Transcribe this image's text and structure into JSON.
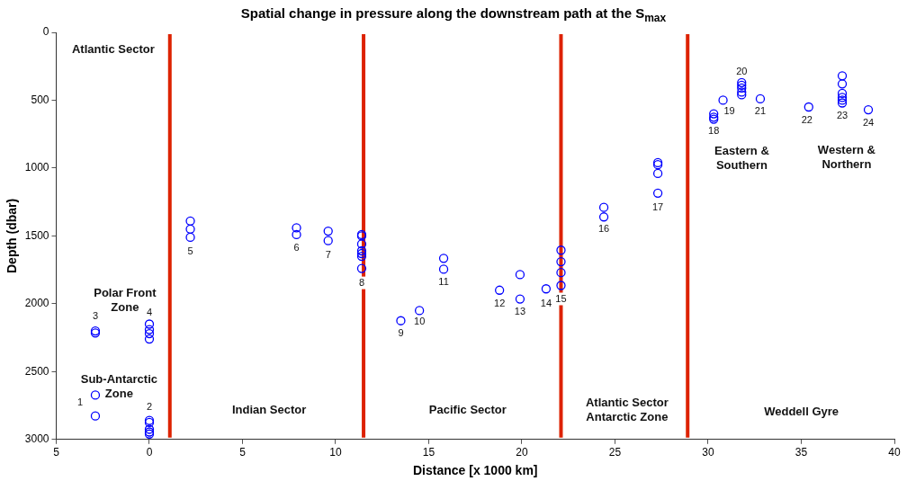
{
  "chart_data": {
    "type": "scatter",
    "title": "Spatial change in pressure along the downstream path at the S$_{max}$",
    "xlabel": "Distance [x 1000 km]",
    "ylabel": "Depth (dbar)",
    "xlim": [
      -5,
      40
    ],
    "xticks": [
      {
        "value": -5,
        "label": "5"
      },
      0,
      5,
      10,
      15,
      20,
      25,
      30,
      35,
      40
    ],
    "ylim": [
      3000,
      0
    ],
    "yticks": [
      0,
      500,
      1000,
      1500,
      2000,
      2500,
      3000
    ],
    "grid": false,
    "legend": false,
    "marker": "circle",
    "series": [
      {
        "color": "#0000ff",
        "x": [
          -2.9,
          -2.9,
          0,
          0,
          0,
          0,
          0,
          -2.9,
          -2.9,
          0,
          0,
          0,
          0,
          2.2,
          2.2,
          2.2,
          7.9,
          7.9,
          9.6,
          9.6,
          11.4,
          11.4,
          11.4,
          11.4,
          11.4,
          11.4,
          11.4,
          13.5,
          14.5,
          15.8,
          15.8,
          18.8,
          19.9,
          19.9,
          21.3,
          22.1,
          22.1,
          22.1,
          22.1,
          24.4,
          24.4,
          27.3,
          27.3,
          27.3,
          27.3,
          30.3,
          30.3,
          30.3,
          30.8,
          31.8,
          31.8,
          31.8,
          31.8,
          31.8,
          32.8,
          35.4,
          37.2,
          37.2,
          37.2,
          37.2,
          37.2,
          37.2,
          38.6
        ],
        "values": [
          2673,
          2827,
          2860,
          2875,
          2925,
          2945,
          2960,
          2200,
          2215,
          2150,
          2190,
          2220,
          2260,
          1390,
          1450,
          1510,
          1440,
          1490,
          1465,
          1535,
          1490,
          1500,
          1560,
          1610,
          1630,
          1650,
          1740,
          2125,
          2050,
          1665,
          1745,
          1900,
          1785,
          1965,
          1890,
          1605,
          1690,
          1770,
          1865,
          1290,
          1360,
          960,
          975,
          1040,
          1185,
          600,
          625,
          640,
          500,
          370,
          390,
          410,
          440,
          460,
          490,
          550,
          320,
          380,
          450,
          480,
          500,
          520,
          570
        ]
      }
    ],
    "ref_lines": [
      {
        "axis": "x",
        "value": 1.1,
        "color": "#dd2200"
      },
      {
        "axis": "x",
        "value": 11.5,
        "color": "#dd2200"
      },
      {
        "axis": "x",
        "value": 22.1,
        "color": "#dd2200"
      },
      {
        "axis": "x",
        "value": 28.9,
        "color": "#dd2200"
      }
    ],
    "annotations": [
      {
        "text": "1",
        "x": -2.9,
        "y": 2673
      },
      {
        "text": "2",
        "x": 0,
        "y": 2860
      },
      {
        "text": "3",
        "x": -2.9,
        "y": 2200
      },
      {
        "text": "4",
        "x": 0,
        "y": 2150
      },
      {
        "text": "5",
        "x": 2.2,
        "y": 1510
      },
      {
        "text": "6",
        "x": 7.9,
        "y": 1490
      },
      {
        "text": "7",
        "x": 9.6,
        "y": 1535
      },
      {
        "text": "8",
        "x": 11.4,
        "y": 1740
      },
      {
        "text": "9",
        "x": 13.5,
        "y": 2125
      },
      {
        "text": "10",
        "x": 14.5,
        "y": 2050
      },
      {
        "text": "11",
        "x": 15.8,
        "y": 1745
      },
      {
        "text": "12",
        "x": 18.8,
        "y": 1900
      },
      {
        "text": "13",
        "x": 19.9,
        "y": 1965
      },
      {
        "text": "14",
        "x": 21.3,
        "y": 1890
      },
      {
        "text": "15",
        "x": 22.1,
        "y": 1865
      },
      {
        "text": "16",
        "x": 24.4,
        "y": 1360
      },
      {
        "text": "17",
        "x": 27.3,
        "y": 1185
      },
      {
        "text": "18",
        "x": 30.3,
        "y": 640
      },
      {
        "text": "19",
        "x": 30.8,
        "y": 500
      },
      {
        "text": "20",
        "x": 31.8,
        "y": 370
      },
      {
        "text": "21",
        "x": 32.8,
        "y": 490
      },
      {
        "text": "22",
        "x": 35.4,
        "y": 550
      },
      {
        "text": "23",
        "x": 37.2,
        "y": 520
      },
      {
        "text": "24",
        "x": 38.6,
        "y": 570
      },
      "Atlantic Sector",
      "Polar Front\nZone",
      "Sub-Antarctic\nZone",
      "Indian Sector",
      "Pacific Sector",
      "Atlantic Sector\nAntarctic Zone",
      "Weddell Gyre",
      "Eastern &\nSouthern",
      "Western &\nNorthern"
    ]
  }
}
